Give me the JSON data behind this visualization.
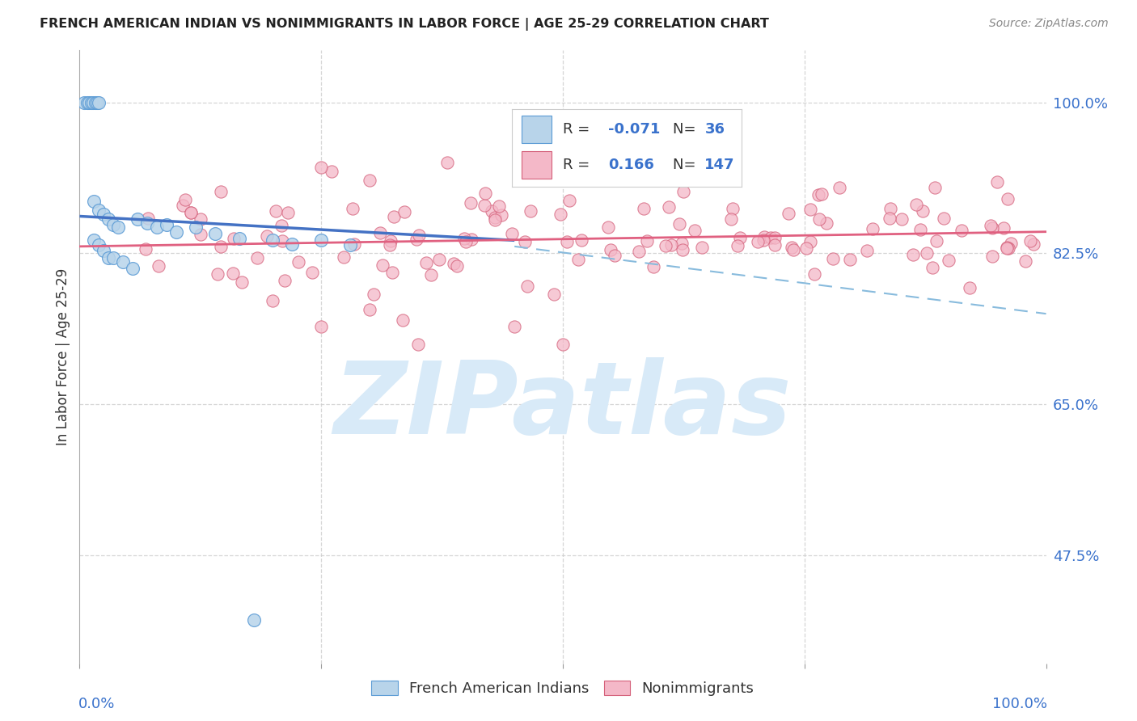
{
  "title": "FRENCH AMERICAN INDIAN VS NONIMMIGRANTS IN LABOR FORCE | AGE 25-29 CORRELATION CHART",
  "source": "Source: ZipAtlas.com",
  "ylabel": "In Labor Force | Age 25-29",
  "legend_label1": "French American Indians",
  "legend_label2": "Nonimmigrants",
  "R1": -0.071,
  "N1": 36,
  "R2": 0.166,
  "N2": 147,
  "color_blue_fill": "#b8d4ea",
  "color_blue_edge": "#5b9bd5",
  "color_pink_fill": "#f4b8c8",
  "color_pink_edge": "#d4607a",
  "color_blue_line": "#4472c4",
  "color_pink_line": "#e06080",
  "color_dashed": "#88bbdd",
  "color_axis_label": "#3a72cc",
  "color_grid": "#cccccc",
  "watermark_color": "#d8eaf8",
  "xlim": [
    0.0,
    1.0
  ],
  "ylim": [
    0.35,
    1.06
  ],
  "ytick_vals": [
    0.475,
    0.65,
    0.825,
    1.0
  ],
  "ytick_labels": [
    "47.5%",
    "65.0%",
    "82.5%",
    "100.0%"
  ],
  "blue_trend_x": [
    0.0,
    0.45
  ],
  "blue_trend_y": [
    0.868,
    0.84
  ],
  "pink_trend_x": [
    0.0,
    1.0
  ],
  "pink_trend_y": [
    0.833,
    0.85
  ],
  "dash_trend_x": [
    0.45,
    1.0
  ],
  "dash_trend_y": [
    0.833,
    0.755
  ],
  "watermark_text": "ZIPatlas"
}
